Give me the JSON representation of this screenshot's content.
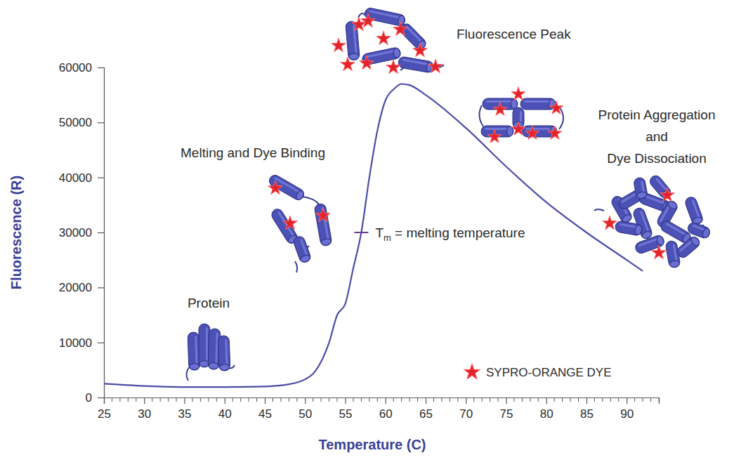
{
  "chart_data": {
    "type": "line",
    "xlabel": "Temperature (C)",
    "ylabel": "Fluorescence (R)",
    "x": [
      25,
      30,
      35,
      40,
      45,
      48,
      50,
      51,
      52,
      53,
      54,
      55,
      56,
      57,
      58,
      59,
      60,
      61,
      62,
      63,
      65,
      70,
      75,
      80,
      85,
      90,
      92
    ],
    "values": [
      2500,
      2100,
      1900,
      1900,
      2000,
      2400,
      3300,
      4300,
      6500,
      10000,
      15000,
      17000,
      23500,
      30000,
      40000,
      48500,
      54000,
      56000,
      57000,
      56800,
      55000,
      49000,
      42000,
      35500,
      30000,
      25000,
      23000
    ],
    "color": "#4b4da6",
    "xlim": [
      25,
      94
    ],
    "xticks": [
      25,
      30,
      35,
      40,
      45,
      50,
      55,
      60,
      65,
      70,
      75,
      80,
      85,
      90
    ],
    "ylim": [
      0,
      60000
    ],
    "yticks": [
      0,
      10000,
      20000,
      30000,
      40000,
      50000,
      60000
    ],
    "grid": false,
    "annotations": [
      {
        "text": "Protein"
      },
      {
        "text": "Melting and Dye Binding"
      },
      {
        "text": "Fluorescence Peak"
      },
      {
        "lines": [
          "Protein Aggregation",
          "and",
          "Dye Dissociation"
        ]
      }
    ],
    "tm": {
      "x": 57,
      "parts": [
        "T",
        "m",
        " = melting temperature"
      ]
    },
    "dye_label": "SYPRO-ORANGE DYE"
  }
}
